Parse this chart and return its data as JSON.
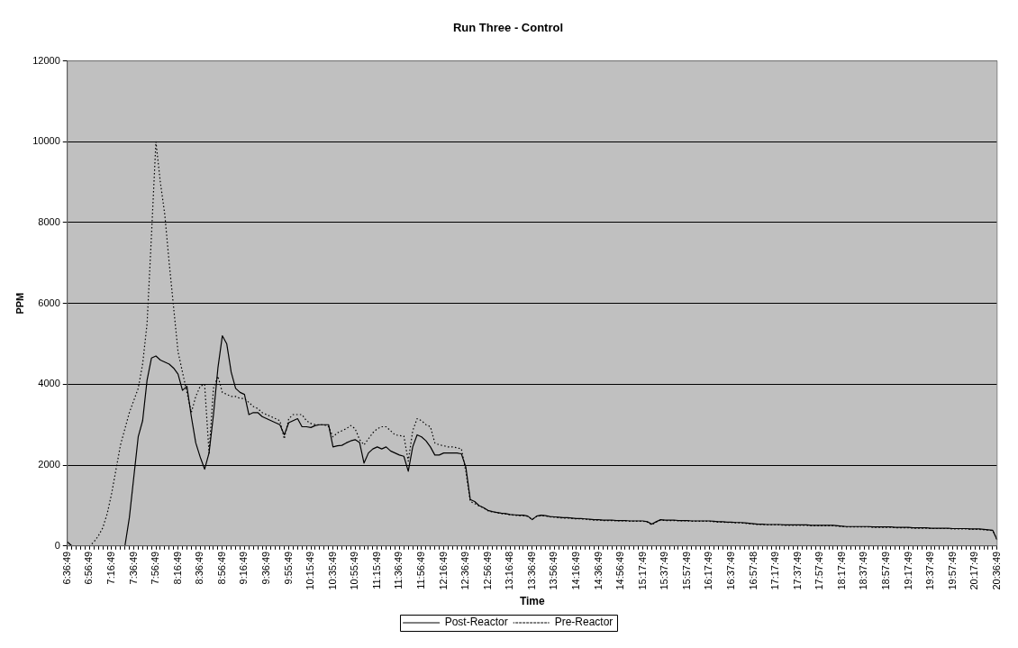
{
  "chart_data": {
    "type": "line",
    "title": "Run Three - Control",
    "xlabel": "Time",
    "ylabel": "PPM",
    "categories": [
      "6:36:49",
      null,
      null,
      null,
      null,
      "6:56:49",
      null,
      null,
      null,
      null,
      "7:16:49",
      null,
      null,
      null,
      null,
      "7:36:49",
      null,
      null,
      null,
      null,
      "7:56:49",
      null,
      null,
      null,
      null,
      "8:16:49",
      null,
      null,
      null,
      null,
      "8:36:49",
      null,
      null,
      null,
      null,
      "8:56:49",
      null,
      null,
      null,
      null,
      "9:16:49",
      null,
      null,
      null,
      null,
      "9:36:49",
      null,
      null,
      null,
      null,
      "9:55:49",
      null,
      null,
      null,
      null,
      "10:15:49",
      null,
      null,
      null,
      null,
      "10:35:49",
      null,
      null,
      null,
      null,
      "10:55:49",
      null,
      null,
      null,
      null,
      "11:15:49",
      null,
      null,
      null,
      null,
      "11:36:49",
      null,
      null,
      null,
      null,
      "11:56:49",
      null,
      null,
      null,
      null,
      "12:16:49",
      null,
      null,
      null,
      null,
      "12:36:49",
      null,
      null,
      null,
      null,
      "12:56:49",
      null,
      null,
      null,
      null,
      "13:16:48",
      null,
      null,
      null,
      null,
      "13:36:49",
      null,
      null,
      null,
      null,
      "13:56:49",
      null,
      null,
      null,
      null,
      "14:16:49",
      null,
      null,
      null,
      null,
      "14:36:49",
      null,
      null,
      null,
      null,
      "14:56:49",
      null,
      null,
      null,
      null,
      "15:17:49",
      null,
      null,
      null,
      null,
      "15:37:49",
      null,
      null,
      null,
      null,
      "15:57:49",
      null,
      null,
      null,
      null,
      "16:17:49",
      null,
      null,
      null,
      null,
      "16:37:49",
      null,
      null,
      null,
      null,
      "16:57:48",
      null,
      null,
      null,
      null,
      "17:17:49",
      null,
      null,
      null,
      null,
      "17:37:49",
      null,
      null,
      null,
      null,
      "17:57:49",
      null,
      null,
      null,
      null,
      "18:17:49",
      null,
      null,
      null,
      null,
      "18:37:49",
      null,
      null,
      null,
      null,
      "18:57:49",
      null,
      null,
      null,
      null,
      "19:17:49",
      null,
      null,
      null,
      null,
      "19:37:49",
      null,
      null,
      null,
      null,
      "19:57:49",
      null,
      null,
      null,
      null,
      "20:17:49",
      null,
      null,
      null,
      null,
      "20:36:49"
    ],
    "series": [
      {
        "name": "Post-Reactor",
        "color": "#000000",
        "line_style": "solid",
        "values": [
          100,
          0,
          0,
          0,
          0,
          0,
          0,
          0,
          0,
          0,
          0,
          0,
          0,
          0,
          700,
          1700,
          2700,
          3100,
          4100,
          4650,
          4700,
          4600,
          4550,
          4500,
          4400,
          4250,
          3850,
          3950,
          3200,
          2550,
          2200,
          1900,
          2300,
          3250,
          4400,
          5200,
          5000,
          4300,
          3900,
          3800,
          3750,
          3250,
          3300,
          3300,
          3200,
          3150,
          3100,
          3050,
          3000,
          2750,
          3050,
          3100,
          3150,
          2950,
          2950,
          2930,
          2980,
          3000,
          3000,
          3000,
          2450,
          2480,
          2490,
          2550,
          2600,
          2630,
          2560,
          2050,
          2300,
          2400,
          2450,
          2400,
          2450,
          2350,
          2300,
          2250,
          2220,
          1850,
          2450,
          2750,
          2700,
          2600,
          2450,
          2250,
          2250,
          2300,
          2300,
          2300,
          2300,
          2280,
          1950,
          1150,
          1100,
          1000,
          950,
          880,
          850,
          830,
          810,
          800,
          780,
          770,
          760,
          760,
          740,
          650,
          740,
          760,
          750,
          730,
          720,
          710,
          700,
          700,
          690,
          680,
          680,
          670,
          660,
          650,
          650,
          640,
          640,
          640,
          630,
          630,
          630,
          620,
          620,
          620,
          620,
          600,
          540,
          600,
          650,
          640,
          640,
          640,
          630,
          630,
          630,
          620,
          620,
          620,
          620,
          620,
          610,
          600,
          600,
          590,
          590,
          580,
          580,
          570,
          560,
          550,
          540,
          540,
          530,
          530,
          530,
          530,
          520,
          520,
          520,
          520,
          520,
          520,
          510,
          510,
          510,
          510,
          510,
          510,
          500,
          490,
          480,
          480,
          480,
          480,
          480,
          480,
          470,
          470,
          470,
          470,
          470,
          460,
          460,
          460,
          460,
          450,
          450,
          450,
          450,
          440,
          440,
          440,
          440,
          440,
          430,
          430,
          430,
          430,
          420,
          420,
          420,
          410,
          400,
          390,
          150
        ]
      },
      {
        "name": "Pre-Reactor",
        "color": "#000000",
        "line_style": "dotted",
        "values": [
          0,
          0,
          0,
          0,
          0,
          0,
          100,
          250,
          450,
          800,
          1300,
          1900,
          2500,
          2900,
          3300,
          3600,
          3900,
          4500,
          5500,
          7700,
          10000,
          9000,
          8200,
          7000,
          5900,
          4800,
          4300,
          3800,
          3300,
          3700,
          3950,
          4000,
          2300,
          3900,
          4200,
          3800,
          3750,
          3700,
          3700,
          3650,
          3650,
          3550,
          3450,
          3400,
          3300,
          3250,
          3200,
          3150,
          3100,
          2650,
          3150,
          3250,
          3250,
          3250,
          3100,
          3030,
          3000,
          3000,
          3000,
          2950,
          2700,
          2800,
          2850,
          2900,
          2980,
          2900,
          2630,
          2500,
          2650,
          2800,
          2900,
          2950,
          2950,
          2850,
          2750,
          2730,
          2720,
          2100,
          2850,
          3150,
          3100,
          3000,
          2950,
          2550,
          2500,
          2480,
          2450,
          2450,
          2430,
          2400,
          1850,
          1100,
          1050,
          990,
          940,
          870,
          840,
          820,
          800,
          790,
          770,
          760,
          750,
          750,
          730,
          660,
          730,
          750,
          740,
          720,
          710,
          700,
          690,
          690,
          680,
          670,
          670,
          660,
          650,
          640,
          640,
          630,
          630,
          630,
          620,
          620,
          620,
          610,
          610,
          610,
          610,
          590,
          520,
          590,
          640,
          630,
          630,
          630,
          620,
          620,
          620,
          610,
          610,
          610,
          610,
          610,
          600,
          590,
          590,
          580,
          580,
          570,
          570,
          560,
          550,
          540,
          530,
          530,
          520,
          520,
          520,
          520,
          510,
          510,
          510,
          510,
          510,
          510,
          500,
          500,
          500,
          500,
          500,
          500,
          490,
          480,
          470,
          470,
          470,
          470,
          470,
          470,
          460,
          460,
          460,
          460,
          460,
          450,
          450,
          450,
          450,
          440,
          440,
          440,
          440,
          430,
          430,
          430,
          430,
          430,
          420,
          420,
          420,
          420,
          410,
          410,
          410,
          400,
          390,
          380,
          150
        ]
      }
    ],
    "ylim": [
      0,
      12000
    ],
    "yticks": [
      0,
      2000,
      4000,
      6000,
      8000,
      10000,
      12000
    ],
    "grid": "y",
    "legend": "bottom",
    "marker": "none"
  }
}
